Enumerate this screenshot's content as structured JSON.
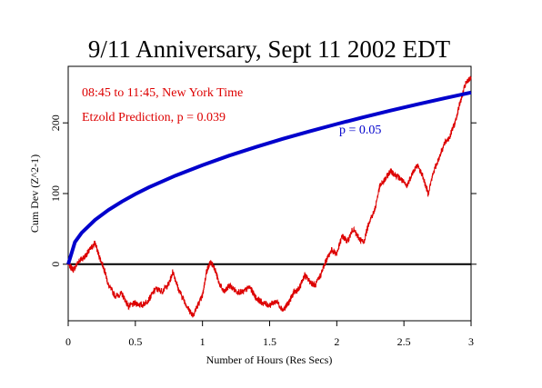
{
  "chart_data": {
    "type": "line",
    "title": "9/11 Anniversary, Sept 11 2002 EDT",
    "xlabel": "Number of Hours (Res Secs)",
    "ylabel": "Cum Dev (Z^2-1)",
    "xlim": [
      0,
      3
    ],
    "ylim": [
      -80,
      280
    ],
    "x_ticks": [
      0,
      0.5,
      1,
      1.5,
      2,
      2.5,
      3
    ],
    "x_tick_labels": [
      "0",
      "0.5",
      "1",
      "1.5",
      "2",
      "2.5",
      "3"
    ],
    "y_ticks": [
      0,
      100,
      200
    ],
    "y_tick_labels": [
      "0",
      "100",
      "200"
    ],
    "grid": false,
    "reference_line": {
      "y": 0,
      "color": "#000000"
    },
    "annotations": [
      {
        "text": "08:45 to 11:45, New York Time",
        "color": "#dd0000"
      },
      {
        "text": "Etzold Prediction,  p = 0.039",
        "color": "#dd0000"
      },
      {
        "text": "p = 0.05",
        "color": "#0000cc"
      }
    ],
    "series": [
      {
        "color": "#dd0000",
        "style": "noisy-line",
        "x": [
          0,
          0.04,
          0.08,
          0.12,
          0.16,
          0.2,
          0.23,
          0.27,
          0.3,
          0.35,
          0.4,
          0.45,
          0.5,
          0.55,
          0.6,
          0.65,
          0.7,
          0.75,
          0.78,
          0.82,
          0.86,
          0.9,
          0.93,
          0.96,
          1.0,
          1.03,
          1.06,
          1.09,
          1.12,
          1.16,
          1.2,
          1.25,
          1.3,
          1.35,
          1.4,
          1.45,
          1.5,
          1.55,
          1.6,
          1.64,
          1.68,
          1.72,
          1.76,
          1.8,
          1.84,
          1.88,
          1.92,
          1.96,
          2.0,
          2.04,
          2.08,
          2.12,
          2.16,
          2.2,
          2.24,
          2.28,
          2.32,
          2.36,
          2.4,
          2.44,
          2.48,
          2.52,
          2.56,
          2.6,
          2.64,
          2.68,
          2.72,
          2.76,
          2.8,
          2.84,
          2.88,
          2.92,
          2.96,
          3.0
        ],
        "values": [
          0,
          -8,
          5,
          10,
          20,
          30,
          12,
          -8,
          -30,
          -45,
          -42,
          -60,
          -55,
          -58,
          -50,
          -35,
          -38,
          -28,
          -10,
          -35,
          -50,
          -65,
          -72,
          -60,
          -45,
          -10,
          3,
          -5,
          -25,
          -40,
          -30,
          -38,
          -40,
          -32,
          -48,
          -55,
          -58,
          -52,
          -65,
          -55,
          -40,
          -35,
          -15,
          -25,
          -30,
          -15,
          5,
          20,
          15,
          40,
          32,
          50,
          38,
          30,
          60,
          75,
          110,
          120,
          132,
          126,
          120,
          110,
          128,
          140,
          125,
          100,
          130,
          150,
          170,
          180,
          200,
          230,
          255,
          265
        ]
      },
      {
        "color": "#0000cc",
        "style": "smooth-line",
        "formula": "y = 140.3 * sqrt(x)",
        "x": [
          0,
          0.05,
          0.1,
          0.2,
          0.3,
          0.4,
          0.5,
          0.6,
          0.8,
          1.0,
          1.2,
          1.4,
          1.6,
          1.8,
          2.0,
          2.2,
          2.4,
          2.6,
          2.8,
          3.0
        ],
        "values": [
          0,
          31.4,
          44.4,
          62.7,
          76.8,
          88.7,
          99.2,
          108.7,
          125.5,
          140.3,
          153.7,
          166.0,
          177.5,
          188.2,
          198.4,
          208.1,
          217.4,
          226.2,
          234.8,
          243.0
        ]
      }
    ]
  }
}
